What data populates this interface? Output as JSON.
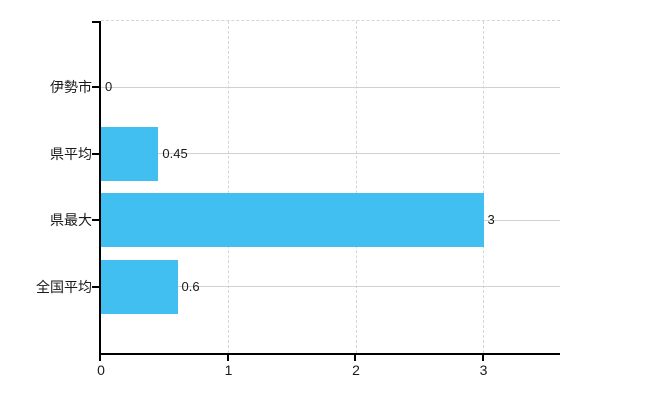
{
  "chart_data": {
    "type": "bar",
    "orientation": "horizontal",
    "title": "",
    "xlabel": "",
    "ylabel": "",
    "categories": [
      "伊勢市",
      "県平均",
      "県最大",
      "全国平均"
    ],
    "values": [
      0,
      0.45,
      3,
      0.6
    ],
    "value_labels": [
      "0",
      "0.45",
      "3",
      "0.6"
    ],
    "x_ticks": [
      "0",
      "1",
      "2",
      "3"
    ],
    "x_tick_values": [
      0,
      1,
      2,
      3
    ],
    "xlim": [
      0,
      3.6
    ],
    "legend": "none",
    "grid": {
      "vertical_style": "dashed",
      "horizontal_style": "solid",
      "top_border_style": "dashed"
    },
    "colors": {
      "bar": "#41bff0",
      "axis": "#000000",
      "grid_solid": "#ccd5cb",
      "grid_dashed": "#d9d3d9",
      "text": "#1a1a1a",
      "background": "#ffffff"
    }
  }
}
